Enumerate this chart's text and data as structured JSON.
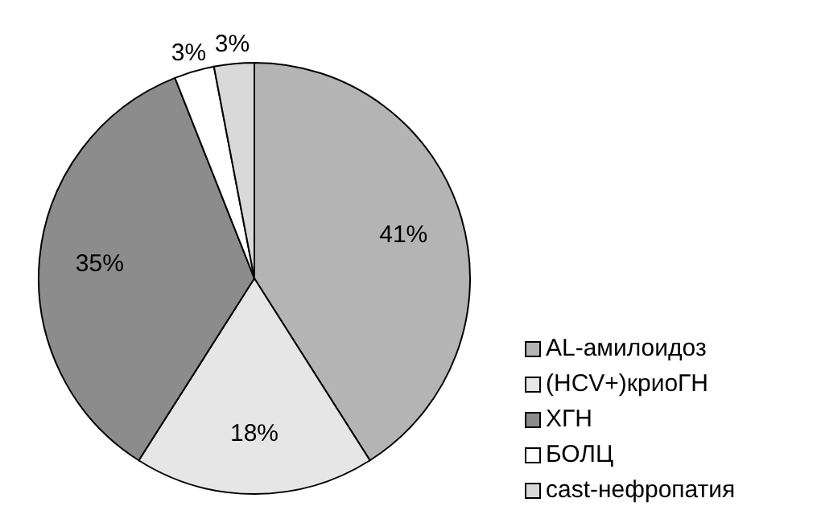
{
  "chart_data": {
    "type": "pie",
    "categories": [
      "AL-амилоидоз",
      "(HCV+)криоГН",
      "ХГН",
      "БОЛЦ",
      "cast-нефропатия"
    ],
    "values": [
      41,
      18,
      35,
      3,
      3
    ],
    "value_labels": [
      "41%",
      "18%",
      "35%",
      "3%",
      "3%"
    ],
    "colors": [
      "#b4b4b4",
      "#e6e6e6",
      "#8c8c8c",
      "#ffffff",
      "#d9d9d9"
    ],
    "legend": "right"
  }
}
